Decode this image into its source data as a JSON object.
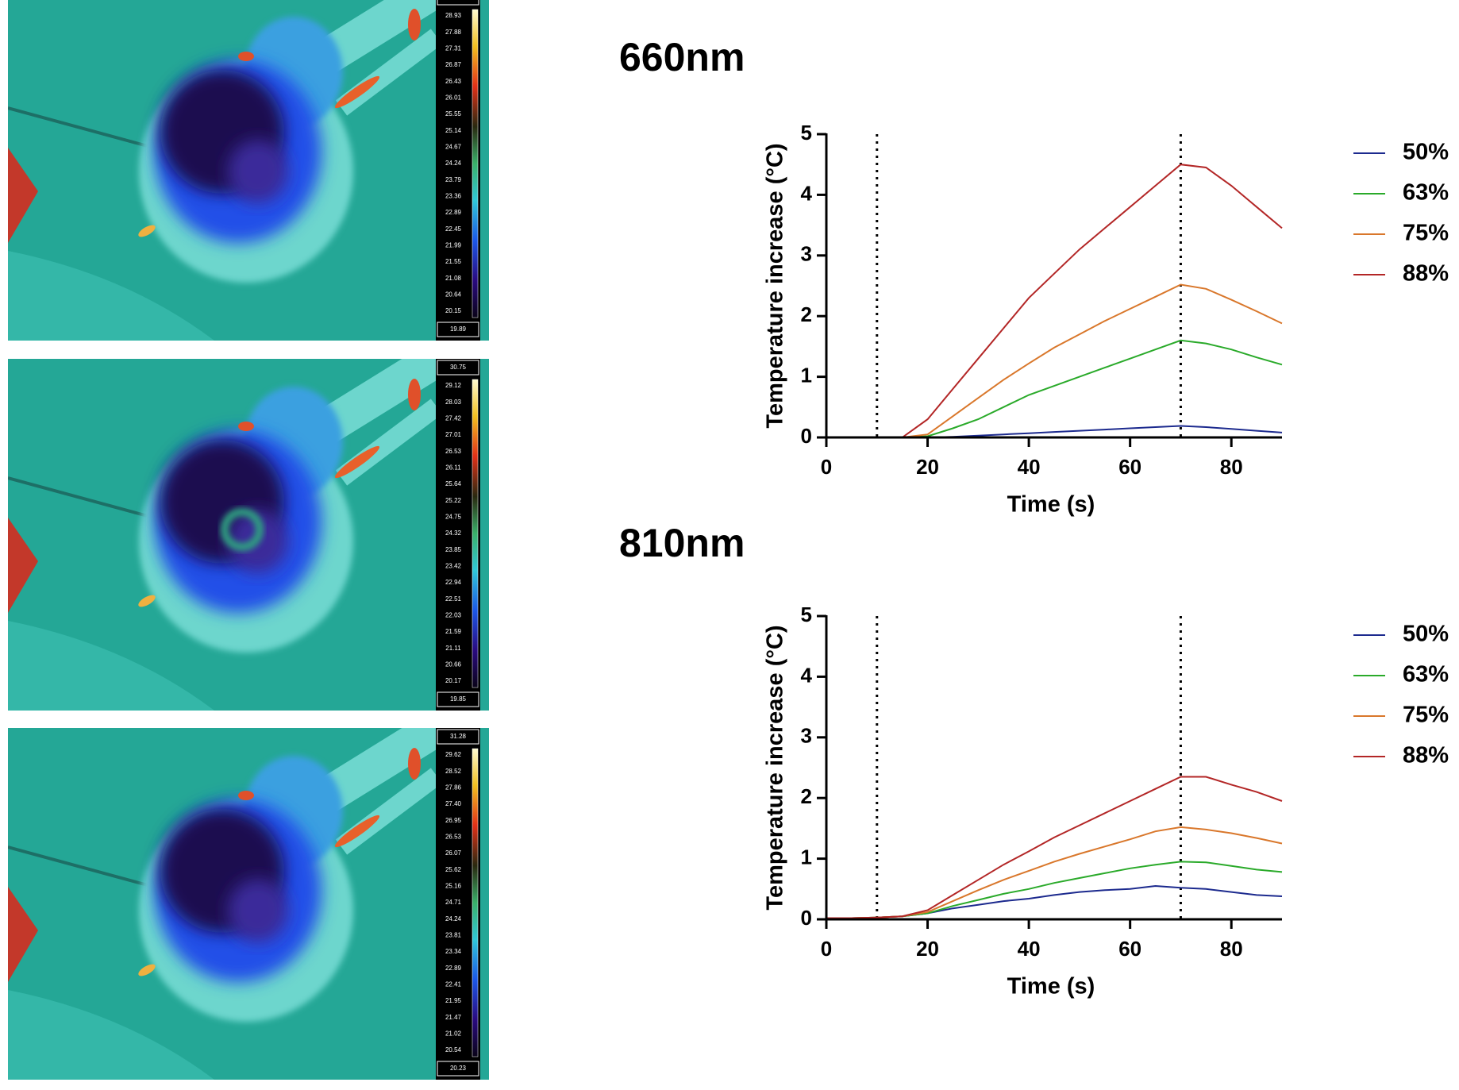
{
  "thermal_images": [
    {
      "scale_labels": [
        "28.93",
        "27.88",
        "27.31",
        "26.87",
        "26.43",
        "26.01",
        "25.55",
        "25.14",
        "24.67",
        "24.24",
        "23.79",
        "23.36",
        "22.89",
        "22.45",
        "21.99",
        "21.55",
        "21.08",
        "20.64",
        "20.15"
      ],
      "min_label": "19.89"
    },
    {
      "max_label": "30.75",
      "scale_labels": [
        "29.12",
        "28.03",
        "27.42",
        "27.01",
        "26.53",
        "26.11",
        "25.64",
        "25.22",
        "24.75",
        "24.32",
        "23.85",
        "23.42",
        "22.94",
        "22.51",
        "22.03",
        "21.59",
        "21.11",
        "20.66",
        "20.17"
      ],
      "min_label": "19.85"
    },
    {
      "max_label": "31.28",
      "scale_labels": [
        "29.62",
        "28.52",
        "27.86",
        "27.40",
        "26.95",
        "26.53",
        "26.07",
        "25.62",
        "25.16",
        "24.71",
        "24.24",
        "23.81",
        "23.34",
        "22.89",
        "22.41",
        "21.95",
        "21.47",
        "21.02",
        "20.54"
      ],
      "min_label": "20.23"
    }
  ],
  "chart_data": [
    {
      "type": "line",
      "title": "660nm",
      "xlabel": "Time (s)",
      "ylabel": "Temperature increase (°C)",
      "x": [
        0,
        5,
        10,
        15,
        20,
        25,
        30,
        35,
        40,
        45,
        50,
        55,
        60,
        65,
        70,
        75,
        80,
        85,
        90
      ],
      "xlim": [
        0,
        90
      ],
      "xticks": [
        0,
        20,
        40,
        60,
        80
      ],
      "ylim": [
        0,
        5
      ],
      "yticks": [
        0,
        1,
        2,
        3,
        4,
        5
      ],
      "vlines": [
        10,
        70
      ],
      "series": [
        {
          "name": "50%",
          "color": "#1c2a8e",
          "values": [
            0,
            0,
            0,
            0,
            0,
            0.01,
            0.03,
            0.05,
            0.07,
            0.09,
            0.11,
            0.13,
            0.15,
            0.17,
            0.19,
            0.17,
            0.14,
            0.11,
            0.08
          ]
        },
        {
          "name": "63%",
          "color": "#2aaa2a",
          "values": [
            0,
            0,
            0,
            0,
            0.02,
            0.15,
            0.3,
            0.5,
            0.7,
            0.85,
            1.0,
            1.15,
            1.3,
            1.45,
            1.6,
            1.55,
            1.45,
            1.32,
            1.2
          ]
        },
        {
          "name": "75%",
          "color": "#d9772b",
          "values": [
            0,
            0,
            0,
            0,
            0.05,
            0.35,
            0.65,
            0.95,
            1.22,
            1.48,
            1.7,
            1.92,
            2.12,
            2.32,
            2.52,
            2.45,
            2.27,
            2.08,
            1.88
          ]
        },
        {
          "name": "88%",
          "color": "#b32626",
          "values": [
            0,
            0,
            0,
            0,
            0.3,
            0.8,
            1.3,
            1.8,
            2.3,
            2.7,
            3.1,
            3.45,
            3.8,
            4.15,
            4.5,
            4.45,
            4.15,
            3.8,
            3.45
          ]
        }
      ]
    },
    {
      "type": "line",
      "title": "810nm",
      "xlabel": "Time (s)",
      "ylabel": "Temperature increase (°C)",
      "x": [
        0,
        5,
        10,
        15,
        20,
        25,
        30,
        35,
        40,
        45,
        50,
        55,
        60,
        65,
        70,
        75,
        80,
        85,
        90
      ],
      "xlim": [
        0,
        90
      ],
      "xticks": [
        0,
        20,
        40,
        60,
        80
      ],
      "ylim": [
        0,
        5
      ],
      "yticks": [
        0,
        1,
        2,
        3,
        4,
        5
      ],
      "vlines": [
        10,
        70
      ],
      "series": [
        {
          "name": "50%",
          "color": "#1c2a8e",
          "values": [
            0.02,
            0.02,
            0.03,
            0.05,
            0.1,
            0.18,
            0.24,
            0.3,
            0.34,
            0.4,
            0.45,
            0.48,
            0.5,
            0.55,
            0.52,
            0.5,
            0.45,
            0.4,
            0.38
          ]
        },
        {
          "name": "63%",
          "color": "#2aaa2a",
          "values": [
            0.02,
            0.02,
            0.03,
            0.05,
            0.1,
            0.22,
            0.32,
            0.42,
            0.5,
            0.6,
            0.68,
            0.76,
            0.84,
            0.9,
            0.95,
            0.94,
            0.88,
            0.82,
            0.78
          ]
        },
        {
          "name": "75%",
          "color": "#d9772b",
          "values": [
            0.02,
            0.02,
            0.03,
            0.05,
            0.12,
            0.3,
            0.48,
            0.65,
            0.8,
            0.95,
            1.08,
            1.2,
            1.32,
            1.45,
            1.52,
            1.48,
            1.42,
            1.34,
            1.25
          ]
        },
        {
          "name": "88%",
          "color": "#b32626",
          "values": [
            0.02,
            0.02,
            0.03,
            0.05,
            0.15,
            0.4,
            0.65,
            0.9,
            1.12,
            1.35,
            1.55,
            1.75,
            1.95,
            2.15,
            2.35,
            2.35,
            2.22,
            2.1,
            1.95
          ]
        }
      ]
    }
  ]
}
